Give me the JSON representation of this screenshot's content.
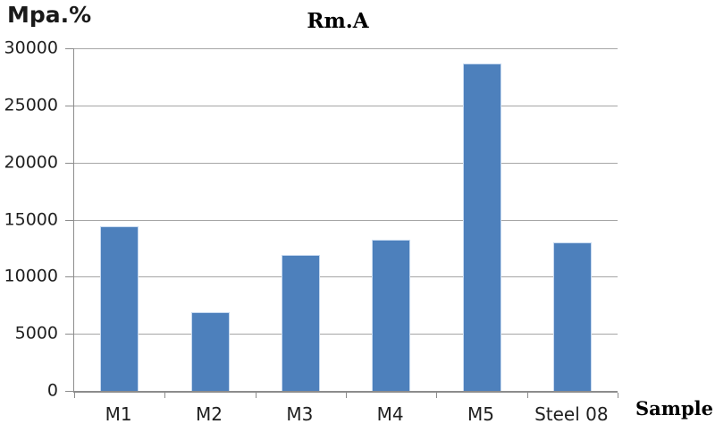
{
  "chart_data": {
    "type": "bar",
    "title": "Rm.A",
    "ylabel": "Mpa.%",
    "xlabel": "Sample",
    "categories": [
      "M1",
      "M2",
      "M3",
      "M4",
      "M5",
      "Steel 08"
    ],
    "values": [
      14400,
      6900,
      11900,
      13200,
      28700,
      13000
    ],
    "ylim": [
      0,
      30000
    ],
    "ytick_step": 5000,
    "ytick_labels": [
      "0",
      "5000",
      "10000",
      "15000",
      "20000",
      "25000",
      "30000"
    ],
    "grid": true,
    "legend": false,
    "colors": {
      "bar_fill": "#4d80bc",
      "bar_border": "#c6d9f0",
      "gridline": "#a6a6a6",
      "axis": "#8c8c8c",
      "text": "#1f1f1f"
    }
  }
}
